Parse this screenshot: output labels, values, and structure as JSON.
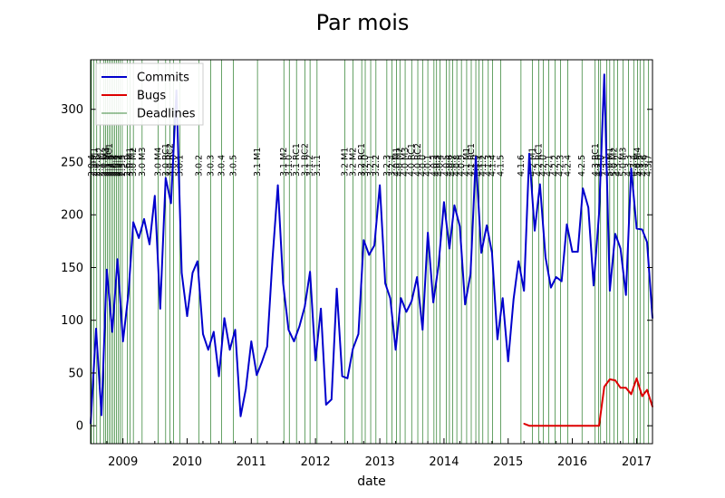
{
  "chart_data": {
    "type": "line",
    "title": "Par mois",
    "xlabel": "date",
    "ylabel": "",
    "xlim": [
      "2008-07-01",
      "2017-04-01"
    ],
    "ylim": [
      -17,
      347
    ],
    "x_ticks": [
      "2009",
      "2010",
      "2011",
      "2012",
      "2013",
      "2014",
      "2015",
      "2016",
      "2017"
    ],
    "y_ticks": [
      0,
      50,
      100,
      150,
      200,
      250,
      300
    ],
    "legend_position": "top-left",
    "colors": {
      "commits": "#0000cc",
      "bugs": "#dd0000",
      "deadlines": "#006400"
    },
    "series": [
      {
        "name": "Commits",
        "color": "#0000cc",
        "points": [
          [
            "2008-07-01",
            2
          ],
          [
            "2008-08-01",
            92
          ],
          [
            "2008-09-01",
            10
          ],
          [
            "2008-10-01",
            148
          ],
          [
            "2008-11-01",
            89
          ],
          [
            "2008-12-01",
            158
          ],
          [
            "2009-01-01",
            80
          ],
          [
            "2009-02-01",
            125
          ],
          [
            "2009-03-01",
            193
          ],
          [
            "2009-04-01",
            178
          ],
          [
            "2009-05-01",
            196
          ],
          [
            "2009-06-01",
            172
          ],
          [
            "2009-07-01",
            218
          ],
          [
            "2009-08-01",
            111
          ],
          [
            "2009-09-01",
            235
          ],
          [
            "2009-10-01",
            211
          ],
          [
            "2009-11-01",
            318
          ],
          [
            "2009-12-01",
            145
          ],
          [
            "2010-01-01",
            104
          ],
          [
            "2010-02-01",
            145
          ],
          [
            "2010-03-01",
            156
          ],
          [
            "2010-04-01",
            87
          ],
          [
            "2010-05-01",
            72
          ],
          [
            "2010-06-01",
            89
          ],
          [
            "2010-07-01",
            47
          ],
          [
            "2010-08-01",
            102
          ],
          [
            "2010-09-01",
            72
          ],
          [
            "2010-10-01",
            91
          ],
          [
            "2010-11-01",
            9
          ],
          [
            "2010-12-01",
            35
          ],
          [
            "2011-01-01",
            80
          ],
          [
            "2011-02-01",
            48
          ],
          [
            "2011-03-01",
            60
          ],
          [
            "2011-04-01",
            75
          ],
          [
            "2011-05-01",
            157
          ],
          [
            "2011-06-01",
            228
          ],
          [
            "2011-07-01",
            135
          ],
          [
            "2011-08-01",
            91
          ],
          [
            "2011-09-01",
            80
          ],
          [
            "2011-10-01",
            94
          ],
          [
            "2011-11-01",
            113
          ],
          [
            "2011-12-01",
            146
          ],
          [
            "2012-01-01",
            62
          ],
          [
            "2012-02-01",
            111
          ],
          [
            "2012-03-01",
            20
          ],
          [
            "2012-04-01",
            25
          ],
          [
            "2012-05-01",
            130
          ],
          [
            "2012-06-01",
            47
          ],
          [
            "2012-07-01",
            45
          ],
          [
            "2012-08-01",
            73
          ],
          [
            "2012-09-01",
            87
          ],
          [
            "2012-10-01",
            176
          ],
          [
            "2012-11-01",
            162
          ],
          [
            "2012-12-01",
            171
          ],
          [
            "2013-01-01",
            228
          ],
          [
            "2013-02-01",
            135
          ],
          [
            "2013-03-01",
            121
          ],
          [
            "2013-04-01",
            72
          ],
          [
            "2013-05-01",
            121
          ],
          [
            "2013-06-01",
            108
          ],
          [
            "2013-07-01",
            118
          ],
          [
            "2013-08-01",
            141
          ],
          [
            "2013-09-01",
            91
          ],
          [
            "2013-10-01",
            183
          ],
          [
            "2013-11-01",
            117
          ],
          [
            "2013-12-01",
            152
          ],
          [
            "2014-01-01",
            212
          ],
          [
            "2014-02-01",
            168
          ],
          [
            "2014-03-01",
            209
          ],
          [
            "2014-04-01",
            189
          ],
          [
            "2014-05-01",
            115
          ],
          [
            "2014-06-01",
            144
          ],
          [
            "2014-07-01",
            255
          ],
          [
            "2014-08-01",
            164
          ],
          [
            "2014-09-01",
            190
          ],
          [
            "2014-10-01",
            164
          ],
          [
            "2014-11-01",
            82
          ],
          [
            "2014-12-01",
            121
          ],
          [
            "2015-01-01",
            61
          ],
          [
            "2015-02-01",
            120
          ],
          [
            "2015-03-01",
            156
          ],
          [
            "2015-04-01",
            128
          ],
          [
            "2015-05-01",
            258
          ],
          [
            "2015-06-01",
            185
          ],
          [
            "2015-07-01",
            229
          ],
          [
            "2015-08-01",
            160
          ],
          [
            "2015-09-01",
            131
          ],
          [
            "2015-10-01",
            141
          ],
          [
            "2015-11-01",
            137
          ],
          [
            "2015-12-01",
            191
          ],
          [
            "2016-01-01",
            165
          ],
          [
            "2016-02-01",
            165
          ],
          [
            "2016-03-01",
            225
          ],
          [
            "2016-04-01",
            207
          ],
          [
            "2016-05-01",
            133
          ],
          [
            "2016-06-01",
            201
          ],
          [
            "2016-07-01",
            333
          ],
          [
            "2016-08-01",
            128
          ],
          [
            "2016-09-01",
            182
          ],
          [
            "2016-10-01",
            168
          ],
          [
            "2016-11-01",
            124
          ],
          [
            "2016-12-01",
            244
          ],
          [
            "2017-01-01",
            187
          ],
          [
            "2017-02-01",
            186
          ],
          [
            "2017-03-01",
            174
          ],
          [
            "2017-04-01",
            102
          ]
        ]
      },
      {
        "name": "Bugs",
        "color": "#dd0000",
        "points": [
          [
            "2015-04-01",
            2
          ],
          [
            "2015-05-01",
            0
          ],
          [
            "2015-06-01",
            0
          ],
          [
            "2015-07-01",
            0
          ],
          [
            "2015-08-01",
            0
          ],
          [
            "2015-09-01",
            0
          ],
          [
            "2015-10-01",
            0
          ],
          [
            "2015-11-01",
            0
          ],
          [
            "2015-12-01",
            0
          ],
          [
            "2016-01-01",
            0
          ],
          [
            "2016-02-01",
            0
          ],
          [
            "2016-03-01",
            0
          ],
          [
            "2016-04-01",
            0
          ],
          [
            "2016-05-01",
            0
          ],
          [
            "2016-06-01",
            0
          ],
          [
            "2016-07-01",
            37
          ],
          [
            "2016-08-01",
            44
          ],
          [
            "2016-09-01",
            43
          ],
          [
            "2016-10-01",
            36
          ],
          [
            "2016-11-01",
            36
          ],
          [
            "2016-12-01",
            30
          ],
          [
            "2017-01-01",
            45
          ],
          [
            "2017-02-01",
            28
          ],
          [
            "2017-03-01",
            34
          ],
          [
            "2017-04-01",
            18
          ]
        ]
      }
    ],
    "deadlines": {
      "name": "Deadlines",
      "color": "#006400",
      "items": [
        {
          "date": "2008-07-05",
          "label": "2.0.4"
        },
        {
          "date": "2008-07-20",
          "label": "2.1 M1"
        },
        {
          "date": "2008-08-05",
          "label": "2.0.5"
        },
        {
          "date": "2008-08-25",
          "label": "2.1 M2"
        },
        {
          "date": "2008-09-15",
          "label": "2.0.6"
        },
        {
          "date": "2008-09-25",
          "label": "2.1 M3"
        },
        {
          "date": "2008-10-05",
          "label": "2.1 M4"
        },
        {
          "date": "2008-10-15",
          "label": "2.2 RC1"
        },
        {
          "date": "2008-10-25",
          "label": "2.2.1"
        },
        {
          "date": "2008-11-05",
          "label": "2.2.2"
        },
        {
          "date": "2008-11-15",
          "label": "2.0.8"
        },
        {
          "date": "2008-11-25",
          "label": "2.5.1"
        },
        {
          "date": "2008-12-05",
          "label": "2.5.2"
        },
        {
          "date": "2008-12-15",
          "label": "2.5.3"
        },
        {
          "date": "2008-12-28",
          "label": "2.5.5"
        },
        {
          "date": "2009-01-25",
          "label": "2.6.9"
        },
        {
          "date": "2009-02-10",
          "label": "3.0 M1"
        },
        {
          "date": "2009-03-01",
          "label": "3.0 M2"
        },
        {
          "date": "2009-04-20",
          "label": "3.0 M3"
        },
        {
          "date": "2009-07-20",
          "label": "3.0 M4"
        },
        {
          "date": "2009-09-01",
          "label": "3.0 RC1"
        },
        {
          "date": "2009-09-25",
          "label": "3.0 RC2"
        },
        {
          "date": "2009-10-15",
          "label": "3.0.0"
        },
        {
          "date": "2009-11-20",
          "label": "3.0.1"
        },
        {
          "date": "2010-03-10",
          "label": "3.0.2"
        },
        {
          "date": "2010-05-15",
          "label": "3.0.3"
        },
        {
          "date": "2010-07-15",
          "label": "3.0.4"
        },
        {
          "date": "2010-09-20",
          "label": "3.0.5"
        },
        {
          "date": "2011-02-05",
          "label": "3.1 M1"
        },
        {
          "date": "2011-07-05",
          "label": "3.1 M2"
        },
        {
          "date": "2011-08-05",
          "label": "3.1.0"
        },
        {
          "date": "2011-09-15",
          "label": "3.1 RC1"
        },
        {
          "date": "2011-11-01",
          "label": "3.1 RC2"
        },
        {
          "date": "2011-12-01",
          "label": "3.1.2"
        },
        {
          "date": "2012-01-10",
          "label": "3.1.1"
        },
        {
          "date": "2012-06-15",
          "label": "3.2 M1"
        },
        {
          "date": "2012-08-01",
          "label": "3.2 M2"
        },
        {
          "date": "2012-09-20",
          "label": "3.2 RC1"
        },
        {
          "date": "2012-10-10",
          "label": "3.2.0"
        },
        {
          "date": "2012-11-10",
          "label": "3.2.1"
        },
        {
          "date": "2012-12-10",
          "label": "3.2.2"
        },
        {
          "date": "2013-02-10",
          "label": "3.2.3"
        },
        {
          "date": "2013-03-10",
          "label": "3.2.4"
        },
        {
          "date": "2013-04-05",
          "label": "4.0 M1"
        },
        {
          "date": "2013-04-25",
          "label": "4.0 M2"
        },
        {
          "date": "2013-05-25",
          "label": "4.0 M3"
        },
        {
          "date": "2013-07-01",
          "label": "4.0 RC1"
        },
        {
          "date": "2013-08-05",
          "label": "4.0 RC2"
        },
        {
          "date": "2013-09-01",
          "label": "4.0.0"
        },
        {
          "date": "2013-10-01",
          "label": "4.0.1"
        },
        {
          "date": "2013-11-05",
          "label": "4.0.2"
        },
        {
          "date": "2013-11-20",
          "label": "4.0.3"
        },
        {
          "date": "2013-12-10",
          "label": "4.0.4"
        },
        {
          "date": "2014-01-15",
          "label": "4.0.5"
        },
        {
          "date": "2014-02-01",
          "label": "4.0.6"
        },
        {
          "date": "2014-02-20",
          "label": "4.0.7"
        },
        {
          "date": "2014-03-15",
          "label": "4.0.8"
        },
        {
          "date": "2014-04-10",
          "label": "4.0.9"
        },
        {
          "date": "2014-05-10",
          "label": "4.1 M1"
        },
        {
          "date": "2014-06-05",
          "label": "4.1 RC1"
        },
        {
          "date": "2014-07-01",
          "label": "4.1.0"
        },
        {
          "date": "2014-07-20",
          "label": "4.1.1"
        },
        {
          "date": "2014-08-10",
          "label": "4.1.2"
        },
        {
          "date": "2014-09-10",
          "label": "4.1.3"
        },
        {
          "date": "2014-10-05",
          "label": "4.1.4"
        },
        {
          "date": "2014-11-20",
          "label": "4.1.5"
        },
        {
          "date": "2015-03-15",
          "label": "4.1.6"
        },
        {
          "date": "2015-05-20",
          "label": "4.2 M1"
        },
        {
          "date": "2015-06-25",
          "label": "4.2 RC1"
        },
        {
          "date": "2015-07-20",
          "label": "4.2.0"
        },
        {
          "date": "2015-08-20",
          "label": "4.2.1"
        },
        {
          "date": "2015-09-25",
          "label": "4.2.2"
        },
        {
          "date": "2015-10-25",
          "label": "4.2.3"
        },
        {
          "date": "2015-12-05",
          "label": "4.2.4"
        },
        {
          "date": "2016-02-25",
          "label": "4.2.5"
        },
        {
          "date": "2016-05-10",
          "label": "4.3 RC1"
        },
        {
          "date": "2016-05-30",
          "label": "4.2.6"
        },
        {
          "date": "2016-06-10",
          "label": "4.3.0"
        },
        {
          "date": "2016-07-15",
          "label": "4.3.1"
        },
        {
          "date": "2016-08-01",
          "label": "5.0 M1"
        },
        {
          "date": "2016-08-25",
          "label": "5.0 M2"
        },
        {
          "date": "2016-09-15",
          "label": "4.3.2"
        },
        {
          "date": "2016-10-15",
          "label": "5.0 M3"
        },
        {
          "date": "2016-11-15",
          "label": "4.3.3"
        },
        {
          "date": "2016-12-15",
          "label": "4.3.4"
        },
        {
          "date": "2017-01-05",
          "label": "5.0 M4"
        },
        {
          "date": "2017-01-20",
          "label": "4.3.5"
        },
        {
          "date": "2017-02-10",
          "label": "4.3.6"
        },
        {
          "date": "2017-03-10",
          "label": "4.3.7"
        }
      ]
    }
  }
}
